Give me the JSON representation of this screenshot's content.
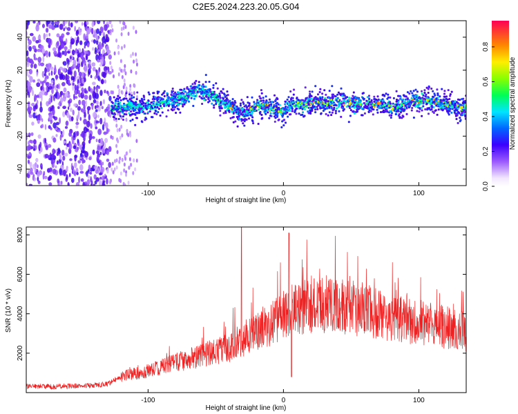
{
  "title": "C2E5.2024.223.20.05.G04",
  "chart_data": [
    {
      "type": "heatmap",
      "xlabel": "Height of straight line (km)",
      "ylabel": "Frequency (Hz)",
      "xlim": [
        -190,
        135
      ],
      "ylim": [
        -50,
        50
      ],
      "xticks": [
        -100,
        0,
        100
      ],
      "xtick_labels": [
        "-100",
        "0",
        "100"
      ],
      "yticks": [
        40,
        20,
        0,
        -20,
        -40
      ],
      "ytick_labels": [
        "40",
        "20",
        "0",
        "-20",
        "-40"
      ],
      "colorbar": {
        "label": "Normalized spectral amplitude",
        "range": [
          0,
          0.95
        ],
        "ticks": [
          0.0,
          0.2,
          0.4,
          0.6,
          0.8
        ],
        "tick_labels": [
          "0.0",
          "0.2",
          "0.4",
          "0.6",
          "0.8"
        ]
      },
      "ridge": {
        "x": [
          -125,
          -115,
          -105,
          -95,
          -85,
          -75,
          -68,
          -62,
          -55,
          -50,
          -45,
          -40,
          -35,
          -30,
          -25,
          -20,
          -15,
          -10,
          -5,
          0,
          5,
          10,
          15,
          20,
          25,
          30,
          40,
          50,
          60,
          70,
          75,
          80,
          85,
          90,
          95,
          100,
          110,
          120,
          130
        ],
        "y": [
          -3,
          -2,
          -3,
          -1,
          1,
          3,
          6,
          8,
          6,
          3,
          0,
          -2,
          -4,
          -6,
          -4,
          -2,
          -1,
          -3,
          -4,
          -6,
          -2,
          0,
          -1,
          0,
          1,
          0,
          1,
          0,
          0,
          0,
          -1,
          -3,
          -2,
          0,
          1,
          1,
          1,
          -1,
          -3
        ]
      }
    },
    {
      "type": "line",
      "xlabel": "Height of straight line (km)",
      "ylabel": "SNR (10 * v/v)",
      "xlim": [
        -190,
        135
      ],
      "ylim": [
        0,
        8400
      ],
      "xticks": [
        -100,
        0,
        100
      ],
      "xtick_labels": [
        "-100",
        "0",
        "100"
      ],
      "yticks": [
        2000,
        4000,
        6000,
        8000
      ],
      "ytick_labels": [
        "2000",
        "4000",
        "6000",
        "8000"
      ],
      "series": [
        {
          "color": "#ee2222",
          "x": [
            -190,
            -180,
            -170,
            -160,
            -150,
            -140,
            -130,
            -125,
            -120,
            -115,
            -110,
            -100,
            -90,
            -80,
            -70,
            -60,
            -50,
            -45,
            -40,
            -35,
            -30,
            -20,
            -10,
            0,
            5,
            10,
            20,
            30,
            40,
            50,
            60,
            70,
            80,
            90,
            100,
            110,
            120,
            130,
            135
          ],
          "y": [
            300,
            320,
            300,
            330,
            350,
            380,
            450,
            600,
            800,
            900,
            950,
            1100,
            1300,
            1500,
            1700,
            1900,
            2100,
            2200,
            2300,
            2500,
            2700,
            3100,
            3500,
            3900,
            4100,
            4300,
            4500,
            4500,
            4400,
            4300,
            4200,
            4000,
            3800,
            3700,
            3600,
            3500,
            3300,
            3200,
            3100
          ]
        }
      ]
    }
  ]
}
